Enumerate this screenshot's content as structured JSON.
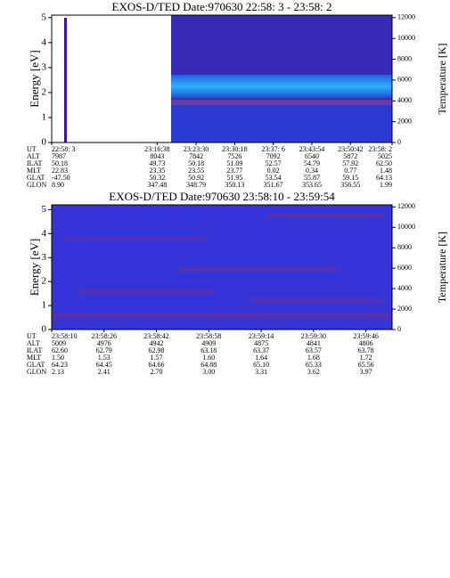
{
  "chart_data": [
    {
      "type": "spectrogram",
      "title": "EXOS-D/TED   Date:970630  22:58: 3 - 23:58: 2",
      "ylabel": "Energy [eV]",
      "y2label": "Temperature [K]",
      "ylim": [
        0,
        5.1
      ],
      "yticks": [
        0,
        1,
        2,
        3,
        4,
        5
      ],
      "y2lim": [
        0,
        12240
      ],
      "y2ticks": [
        0,
        2000,
        4000,
        6000,
        8000,
        10000,
        12000
      ],
      "xlim": [
        "22:58: 3",
        "23:58: 2"
      ],
      "ephemeris": {
        "labels": [
          "UT",
          "ALT",
          "ILAT",
          "MLT",
          "GLAT",
          "GLON"
        ],
        "columns": [
          [
            "22:58: 3",
            "7987",
            "50.18",
            "22.83",
            "-47.50",
            "8.90"
          ],
          [
            "23:16:38",
            "8043",
            "49.73",
            "23.35",
            "50.32",
            "347.48"
          ],
          [
            "23:23:30",
            "7842",
            "50.18",
            "23.55",
            "50.92",
            "348.79"
          ],
          [
            "23:30:18",
            "7526",
            "51.09",
            "23.77",
            "51.95",
            "350.13"
          ],
          [
            "23:37: 6",
            "7092",
            "52.57",
            "0.02",
            "53.54",
            "351.67"
          ],
          [
            "23:43:54",
            "6540",
            "54.79",
            "0.34",
            "55.87",
            "353.65"
          ],
          [
            "23:50:42",
            "5872",
            "57.92",
            "0.77",
            "59.15",
            "356.55"
          ],
          [
            "23:58: 2",
            "5025",
            "62.50",
            "1.48",
            "64.13",
            "1.99"
          ]
        ]
      }
    },
    {
      "type": "spectrogram",
      "title": "EXOS-D/TED   Date:970630  23:58:10 - 23:59:54",
      "ylabel": "Energy [eV]",
      "y2label": "Temperature [K]",
      "ylim": [
        0,
        5.2
      ],
      "yticks": [
        0,
        1,
        2,
        3,
        4,
        5
      ],
      "y2lim": [
        0,
        12200
      ],
      "y2ticks": [
        0,
        2000,
        4000,
        6000,
        8000,
        10000,
        12000
      ],
      "xlim": [
        "23:58:10",
        "23:59:54"
      ],
      "ephemeris": {
        "labels": [
          "UT",
          "ALT",
          "ILAT",
          "MLT",
          "GLAT",
          "GLON"
        ],
        "columns": [
          [
            "23:58:10",
            "5009",
            "62.60",
            "1.50",
            "64.23",
            "2.13"
          ],
          [
            "23:58:26",
            "4976",
            "62.79",
            "1.53",
            "64.45",
            "2.41"
          ],
          [
            "23:58:42",
            "4942",
            "62.98",
            "1.57",
            "64.66",
            "2.70"
          ],
          [
            "23:58:58",
            "4909",
            "63.18",
            "1.60",
            "64.88",
            "3.00"
          ],
          [
            "23:59:14",
            "4875",
            "63.37",
            "1.64",
            "65.10",
            "3.31"
          ],
          [
            "23:59:30",
            "4841",
            "63.57",
            "1.68",
            "65.33",
            "3.62"
          ],
          [
            "23:59:46",
            "4806",
            "63.78",
            "1.72",
            "65.56",
            "3.97"
          ]
        ]
      }
    }
  ]
}
